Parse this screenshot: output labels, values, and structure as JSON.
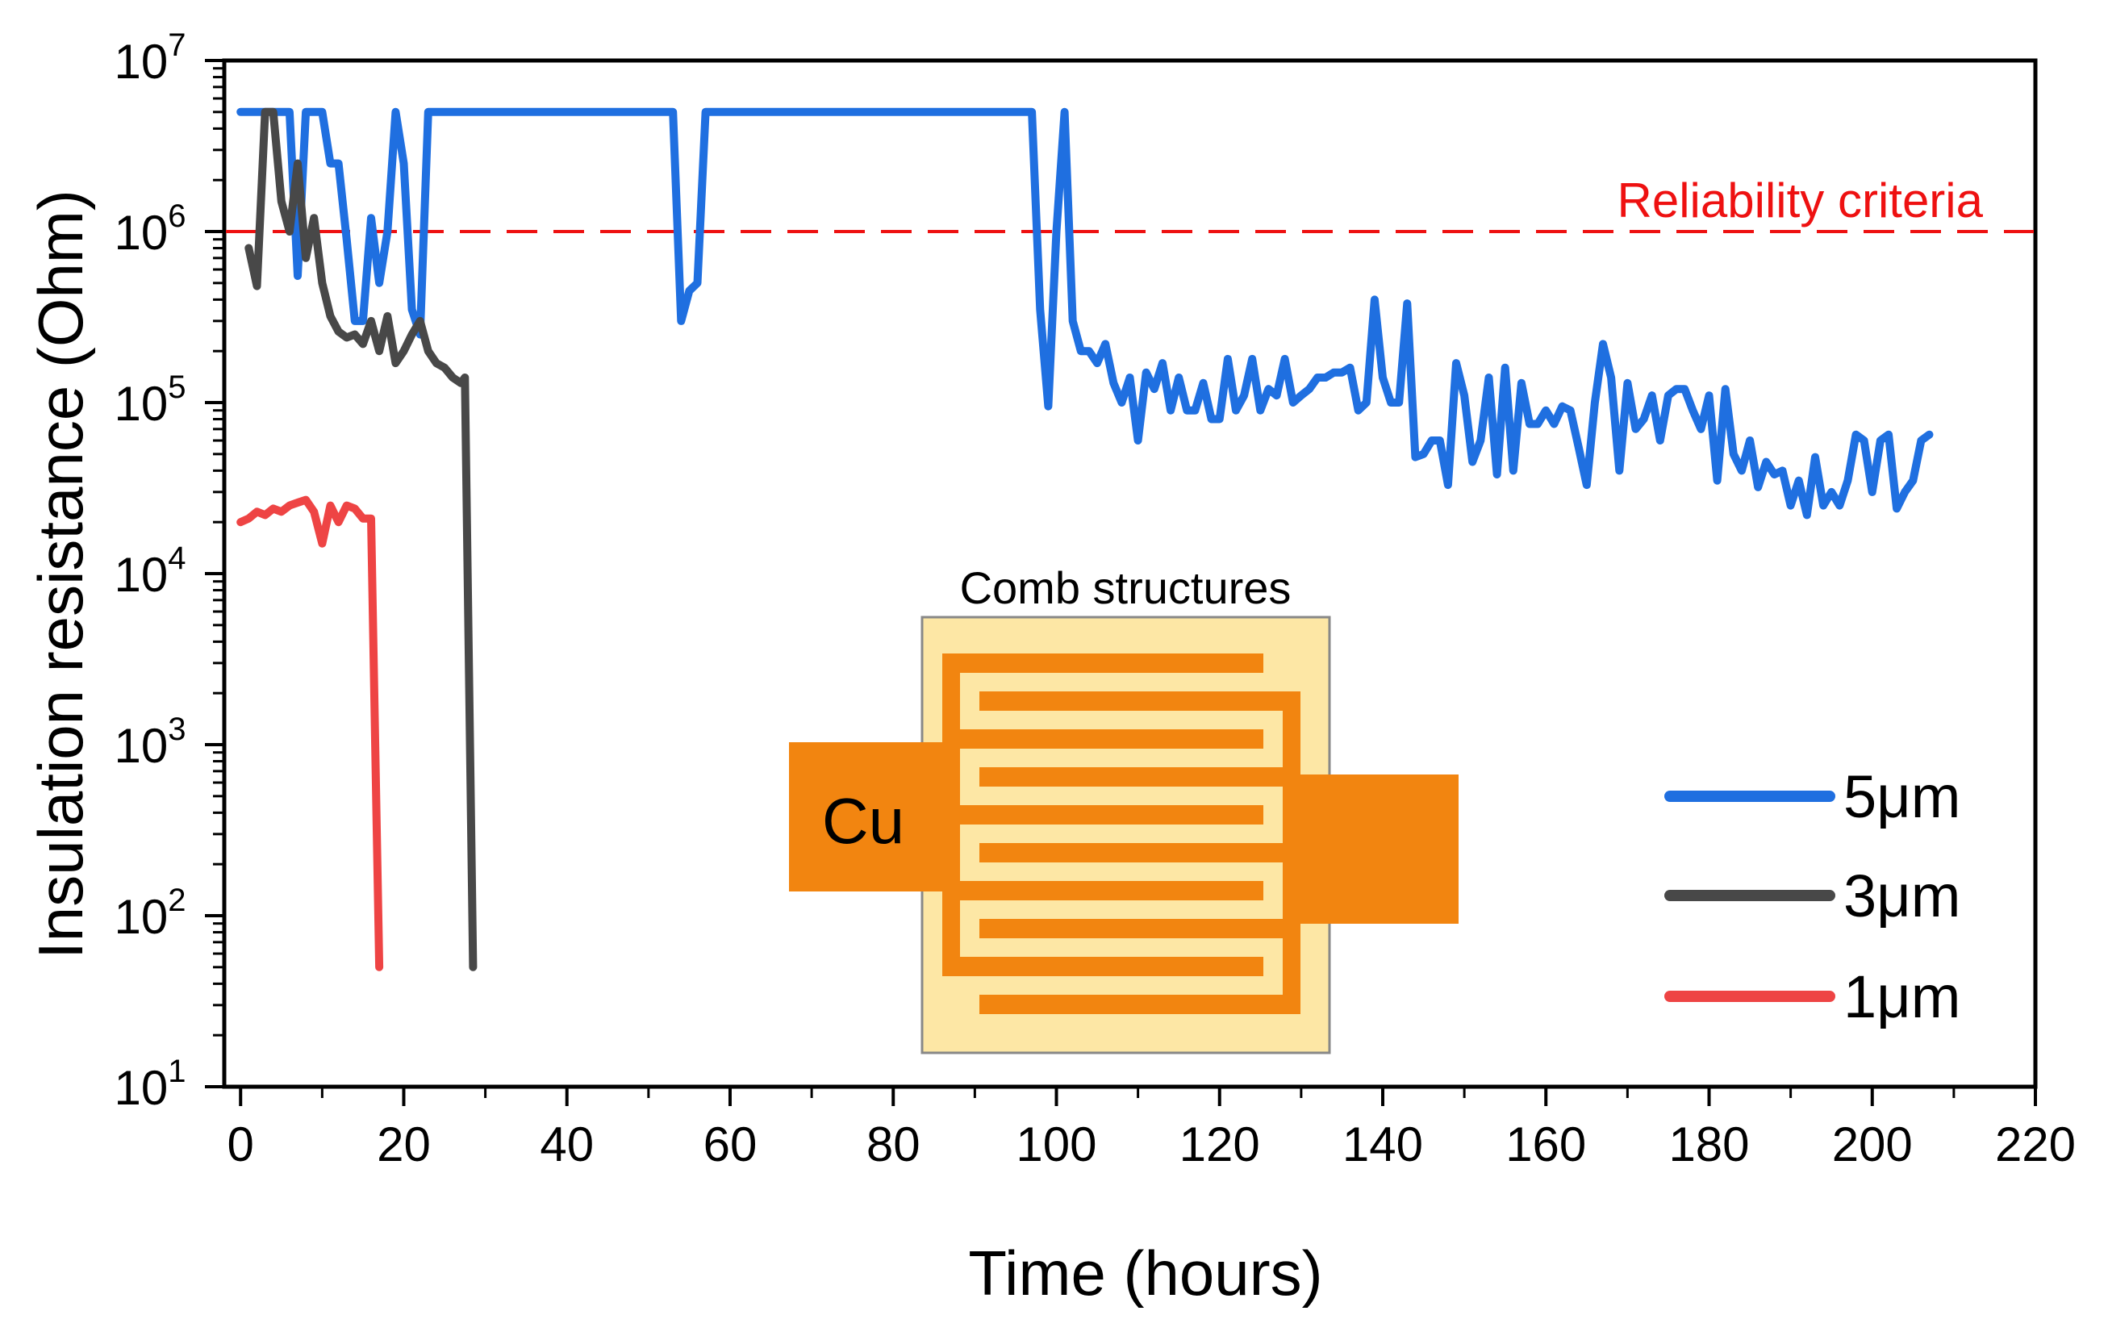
{
  "chart_data": {
    "type": "line",
    "xlabel": "Time (hours)",
    "ylabel": "Insulation resistance (Ohm)",
    "yscale": "log",
    "xlim": [
      -2,
      220
    ],
    "xticks": [
      0,
      20,
      40,
      60,
      80,
      100,
      120,
      140,
      160,
      180,
      200,
      220
    ],
    "ylim": [
      10,
      10000000
    ],
    "yticks": [
      {
        "base": "10",
        "exp": "1",
        "value": 10
      },
      {
        "base": "10",
        "exp": "2",
        "value": 100
      },
      {
        "base": "10",
        "exp": "3",
        "value": 1000
      },
      {
        "base": "10",
        "exp": "4",
        "value": 10000
      },
      {
        "base": "10",
        "exp": "5",
        "value": 100000
      },
      {
        "base": "10",
        "exp": "6",
        "value": 1000000
      },
      {
        "base": "10",
        "exp": "7",
        "value": 10000000
      }
    ],
    "reference_line": {
      "label": "Reliability criteria",
      "value": 1000000,
      "color": "#ee1111"
    },
    "legend_position": "bottom-right",
    "series": [
      {
        "name": "5μm",
        "color": "#1f6fe0",
        "points": [
          [
            0,
            5000000
          ],
          [
            6,
            5000000
          ],
          [
            7,
            550000
          ],
          [
            8,
            5000000
          ],
          [
            10,
            5000000
          ],
          [
            11,
            2500000
          ],
          [
            12,
            2500000
          ],
          [
            13,
            900000
          ],
          [
            14,
            300000
          ],
          [
            15,
            300000
          ],
          [
            16,
            1200000
          ],
          [
            17,
            500000
          ],
          [
            18,
            1000000
          ],
          [
            19,
            5000000
          ],
          [
            20,
            2500000
          ],
          [
            21,
            350000
          ],
          [
            22,
            250000
          ],
          [
            23,
            5000000
          ],
          [
            53,
            5000000
          ],
          [
            54,
            300000
          ],
          [
            55,
            450000
          ],
          [
            56,
            500000
          ],
          [
            57,
            5000000
          ],
          [
            97,
            5000000
          ],
          [
            98,
            350000
          ],
          [
            99,
            95000
          ],
          [
            100,
            1000000
          ],
          [
            101,
            5000000
          ],
          [
            102,
            300000
          ],
          [
            103,
            200000
          ],
          [
            104,
            200000
          ],
          [
            105,
            170000
          ],
          [
            106,
            220000
          ],
          [
            107,
            130000
          ],
          [
            108,
            100000
          ],
          [
            109,
            140000
          ],
          [
            110,
            60000
          ],
          [
            111,
            150000
          ],
          [
            112,
            120000
          ],
          [
            113,
            170000
          ],
          [
            114,
            90000
          ],
          [
            115,
            140000
          ],
          [
            116,
            90000
          ],
          [
            117,
            90000
          ],
          [
            118,
            130000
          ],
          [
            119,
            80000
          ],
          [
            120,
            80000
          ],
          [
            121,
            180000
          ],
          [
            122,
            90000
          ],
          [
            123,
            110000
          ],
          [
            124,
            180000
          ],
          [
            125,
            90000
          ],
          [
            126,
            120000
          ],
          [
            127,
            110000
          ],
          [
            128,
            180000
          ],
          [
            129,
            100000
          ],
          [
            130,
            110000
          ],
          [
            131,
            120000
          ],
          [
            132,
            140000
          ],
          [
            133,
            140000
          ],
          [
            134,
            150000
          ],
          [
            135,
            150000
          ],
          [
            136,
            160000
          ],
          [
            137,
            90000
          ],
          [
            138,
            100000
          ],
          [
            139,
            400000
          ],
          [
            140,
            140000
          ],
          [
            141,
            100000
          ],
          [
            142,
            100000
          ],
          [
            143,
            380000
          ],
          [
            144,
            48000
          ],
          [
            145,
            50000
          ],
          [
            146,
            60000
          ],
          [
            147,
            60000
          ],
          [
            148,
            33000
          ],
          [
            149,
            170000
          ],
          [
            150,
            110000
          ],
          [
            151,
            45000
          ],
          [
            152,
            60000
          ],
          [
            153,
            140000
          ],
          [
            154,
            38000
          ],
          [
            155,
            160000
          ],
          [
            156,
            40000
          ],
          [
            157,
            130000
          ],
          [
            158,
            75000
          ],
          [
            159,
            75000
          ],
          [
            160,
            90000
          ],
          [
            161,
            75000
          ],
          [
            162,
            95000
          ],
          [
            163,
            90000
          ],
          [
            164,
            55000
          ],
          [
            165,
            33000
          ],
          [
            166,
            100000
          ],
          [
            167,
            220000
          ],
          [
            168,
            140000
          ],
          [
            169,
            40000
          ],
          [
            170,
            130000
          ],
          [
            171,
            70000
          ],
          [
            172,
            80000
          ],
          [
            173,
            110000
          ],
          [
            174,
            60000
          ],
          [
            175,
            110000
          ],
          [
            176,
            120000
          ],
          [
            177,
            120000
          ],
          [
            178,
            90000
          ],
          [
            179,
            70000
          ],
          [
            180,
            110000
          ],
          [
            181,
            35000
          ],
          [
            182,
            120000
          ],
          [
            183,
            50000
          ],
          [
            184,
            40000
          ],
          [
            185,
            60000
          ],
          [
            186,
            32000
          ],
          [
            187,
            45000
          ],
          [
            188,
            38000
          ],
          [
            189,
            40000
          ],
          [
            190,
            25000
          ],
          [
            191,
            35000
          ],
          [
            192,
            22000
          ],
          [
            193,
            48000
          ],
          [
            194,
            25000
          ],
          [
            195,
            30000
          ],
          [
            196,
            25000
          ],
          [
            197,
            35000
          ],
          [
            198,
            65000
          ],
          [
            199,
            60000
          ],
          [
            200,
            30000
          ],
          [
            201,
            60000
          ],
          [
            202,
            65000
          ],
          [
            203,
            24000
          ],
          [
            204,
            30000
          ],
          [
            205,
            35000
          ],
          [
            206,
            60000
          ],
          [
            207,
            65000
          ]
        ]
      },
      {
        "name": "3μm",
        "color": "#484848",
        "points": [
          [
            1,
            800000
          ],
          [
            2,
            480000
          ],
          [
            3,
            5000000
          ],
          [
            4,
            5000000
          ],
          [
            5,
            1500000
          ],
          [
            6,
            1000000
          ],
          [
            7,
            2500000
          ],
          [
            8,
            700000
          ],
          [
            9,
            1200000
          ],
          [
            10,
            500000
          ],
          [
            11,
            320000
          ],
          [
            12,
            260000
          ],
          [
            13,
            240000
          ],
          [
            14,
            250000
          ],
          [
            15,
            220000
          ],
          [
            16,
            300000
          ],
          [
            17,
            200000
          ],
          [
            18,
            320000
          ],
          [
            19,
            170000
          ],
          [
            20,
            200000
          ],
          [
            21,
            250000
          ],
          [
            22,
            300000
          ],
          [
            23,
            200000
          ],
          [
            24,
            170000
          ],
          [
            25,
            160000
          ],
          [
            26,
            140000
          ],
          [
            27,
            130000
          ],
          [
            27.5,
            140000
          ],
          [
            28.5,
            50
          ]
        ]
      },
      {
        "name": "1μm",
        "color": "#ee4444",
        "points": [
          [
            0,
            20000
          ],
          [
            1,
            21000
          ],
          [
            2,
            23000
          ],
          [
            3,
            22000
          ],
          [
            4,
            24000
          ],
          [
            5,
            23000
          ],
          [
            6,
            25000
          ],
          [
            7,
            26000
          ],
          [
            8,
            27000
          ],
          [
            9,
            23000
          ],
          [
            10,
            15000
          ],
          [
            11,
            25000
          ],
          [
            12,
            20000
          ],
          [
            13,
            25000
          ],
          [
            14,
            24000
          ],
          [
            15,
            21000
          ],
          [
            16,
            21000
          ],
          [
            17,
            50
          ]
        ]
      }
    ],
    "inset": {
      "title": "Comb structures",
      "label": "Cu",
      "pad_color": "#f28510",
      "background_color": "#fde7a5"
    }
  }
}
